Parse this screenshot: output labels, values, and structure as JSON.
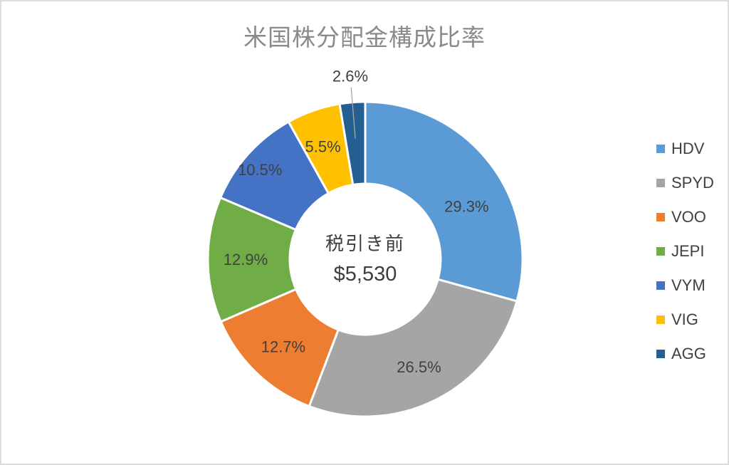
{
  "window": {
    "background": "#ffffff",
    "border_color": "#dcdcdc"
  },
  "chart_data": {
    "type": "pie",
    "subtype": "donut",
    "title": "米国株分配金構成比率",
    "center_label": {
      "line1": "税引き前",
      "line2": "$5,530"
    },
    "series": [
      {
        "name": "HDV",
        "value": 29.3,
        "label": "29.3%",
        "color": "#5B9BD5",
        "label_position": "inside",
        "label_offset": [
          11,
          26
        ]
      },
      {
        "name": "SPYD",
        "value": 26.5,
        "label": "26.5%",
        "color": "#A5A5A5",
        "label_position": "inside",
        "label_offset": [
          1,
          4
        ]
      },
      {
        "name": "VOO",
        "value": 12.7,
        "label": "12.7%",
        "color": "#ED7D31",
        "label_position": "inside",
        "label_offset": [
          -1,
          4
        ]
      },
      {
        "name": "JEPI",
        "value": 12.9,
        "label": "12.9%",
        "color": "#70AD47",
        "label_position": "inside",
        "label_offset": [
          -3,
          0
        ]
      },
      {
        "name": "VYM",
        "value": 10.5,
        "label": "10.5%",
        "color": "#4472C4",
        "label_position": "inside",
        "label_offset": [
          -25,
          -15
        ]
      },
      {
        "name": "VIG",
        "value": 5.5,
        "label": "5.5%",
        "color": "#FFC000",
        "label_position": "inside",
        "label_offset": [
          -5,
          -2
        ]
      },
      {
        "name": "AGG",
        "value": 2.6,
        "label": "2.6%",
        "color": "#255E91",
        "label_position": "outside",
        "label_offset": [
          0,
          0
        ]
      }
    ],
    "layout": {
      "start_angle_deg": 0,
      "direction": "clockwise",
      "hole_ratio": 0.48,
      "legend_position": "right",
      "grid": false
    },
    "colors": {
      "title": "#8a8a8a",
      "data_label": "#404040",
      "legend_text": "#404040",
      "center_text": "#3d3d3d",
      "leader_line": "#a6a6a6",
      "slice_border": "#ffffff"
    }
  }
}
